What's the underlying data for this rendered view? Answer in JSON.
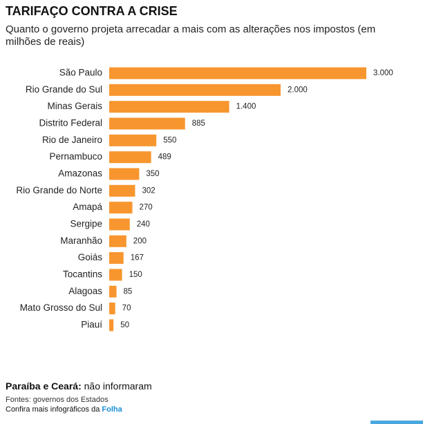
{
  "chart_data": {
    "type": "bar",
    "title": "TARIFAÇO CONTRA A CRISE",
    "subtitle": "Quanto o governo projeta arrecadar a mais com as alterações nos impostos (em milhões de reais)",
    "categories": [
      "São Paulo",
      "Rio Grande do Sul",
      "Minas Gerais",
      "Distrito Federal",
      "Rio de Janeiro",
      "Pernambuco",
      "Amazonas",
      "Rio Grande do Norte",
      "Amapá",
      "Sergipe",
      "Maranhão",
      "Goiás",
      "Tocantins",
      "Alagoas",
      "Mato Grosso do Sul",
      "Piauí"
    ],
    "values": [
      3000,
      2000,
      1400,
      885,
      550,
      489,
      350,
      302,
      270,
      240,
      200,
      167,
      150,
      85,
      70,
      50
    ],
    "value_labels": [
      "3.000",
      "2.000",
      "1.400",
      "885",
      "550",
      "489",
      "350",
      "302",
      "270",
      "240",
      "200",
      "167",
      "150",
      "85",
      "70",
      "50"
    ],
    "color": "#f7962f"
  },
  "footer": {
    "note_bold": "Paraíba e Ceará:",
    "note_text": "não informaram",
    "source": "Fontes: governos dos Estados",
    "more_text": "Confira mais infográficos da",
    "more_link": "Folha"
  }
}
